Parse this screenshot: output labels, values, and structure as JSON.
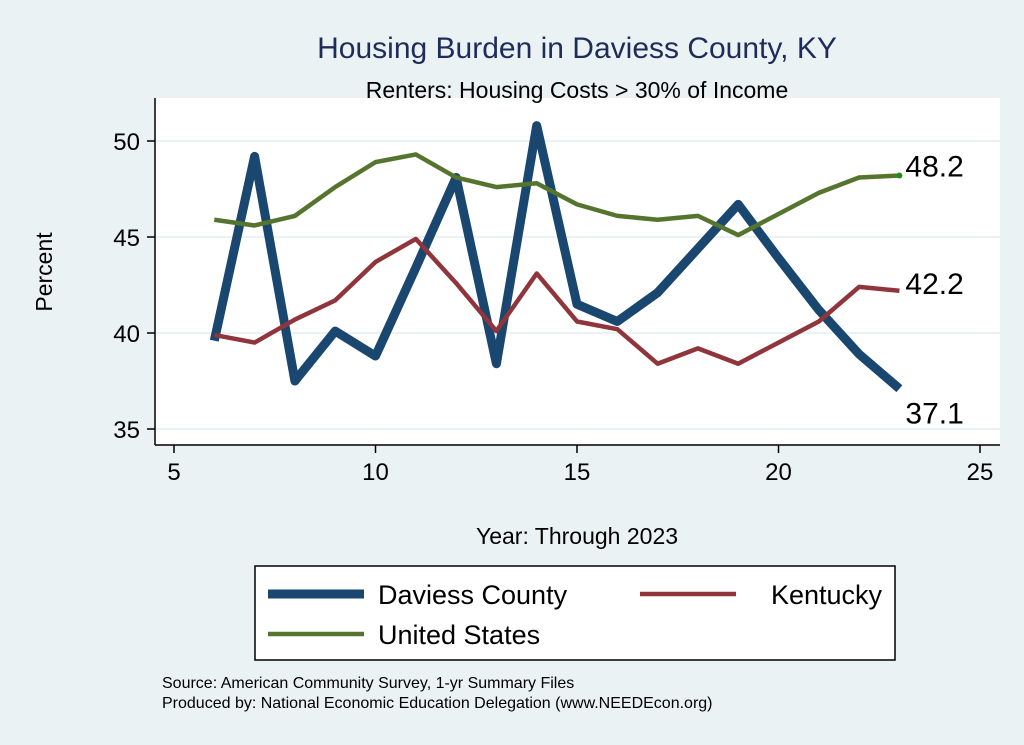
{
  "chart_data": {
    "type": "line",
    "title": "Housing Burden in Daviess County, KY",
    "subtitle": "Renters: Housing Costs > 30% of Income",
    "xlabel": "Year: Through 2023",
    "ylabel": "Percent",
    "xlim": [
      5,
      25
    ],
    "ylim": [
      35,
      51
    ],
    "xticks": [
      5,
      10,
      15,
      20,
      25
    ],
    "yticks": [
      35,
      40,
      45,
      50
    ],
    "grid": true,
    "legend_position": "bottom",
    "x": [
      6,
      7,
      8,
      9,
      10,
      11,
      12,
      13,
      14,
      15,
      16,
      17,
      18,
      19,
      20,
      21,
      22,
      23
    ],
    "series": [
      {
        "name": "Daviess County",
        "color": "#1a476f",
        "values": [
          39.6,
          49.2,
          37.5,
          40.1,
          38.8,
          43.4,
          48.1,
          38.4,
          50.8,
          41.5,
          40.6,
          42.1,
          44.4,
          46.7,
          43.9,
          41.2,
          38.9,
          37.1
        ],
        "end_label": "37.1"
      },
      {
        "name": "Kentucky",
        "color": "#90353b",
        "values": [
          39.9,
          39.5,
          40.7,
          41.7,
          43.7,
          44.9,
          42.6,
          40.1,
          43.1,
          40.6,
          40.2,
          38.4,
          39.2,
          38.4,
          39.5,
          40.6,
          42.4,
          42.2
        ],
        "end_label": "42.2"
      },
      {
        "name": "United States",
        "color": "#55752f",
        "values": [
          45.9,
          45.6,
          46.1,
          47.6,
          48.9,
          49.3,
          48.1,
          47.6,
          47.8,
          46.7,
          46.1,
          45.9,
          46.1,
          45.1,
          46.2,
          47.3,
          48.1,
          48.2
        ],
        "end_label": "48.2"
      }
    ],
    "notes": [
      "Source: American Community Survey, 1-yr Summary Files",
      "Produced by: National Economic Education Delegation (www.NEEDEcon.org)"
    ]
  }
}
